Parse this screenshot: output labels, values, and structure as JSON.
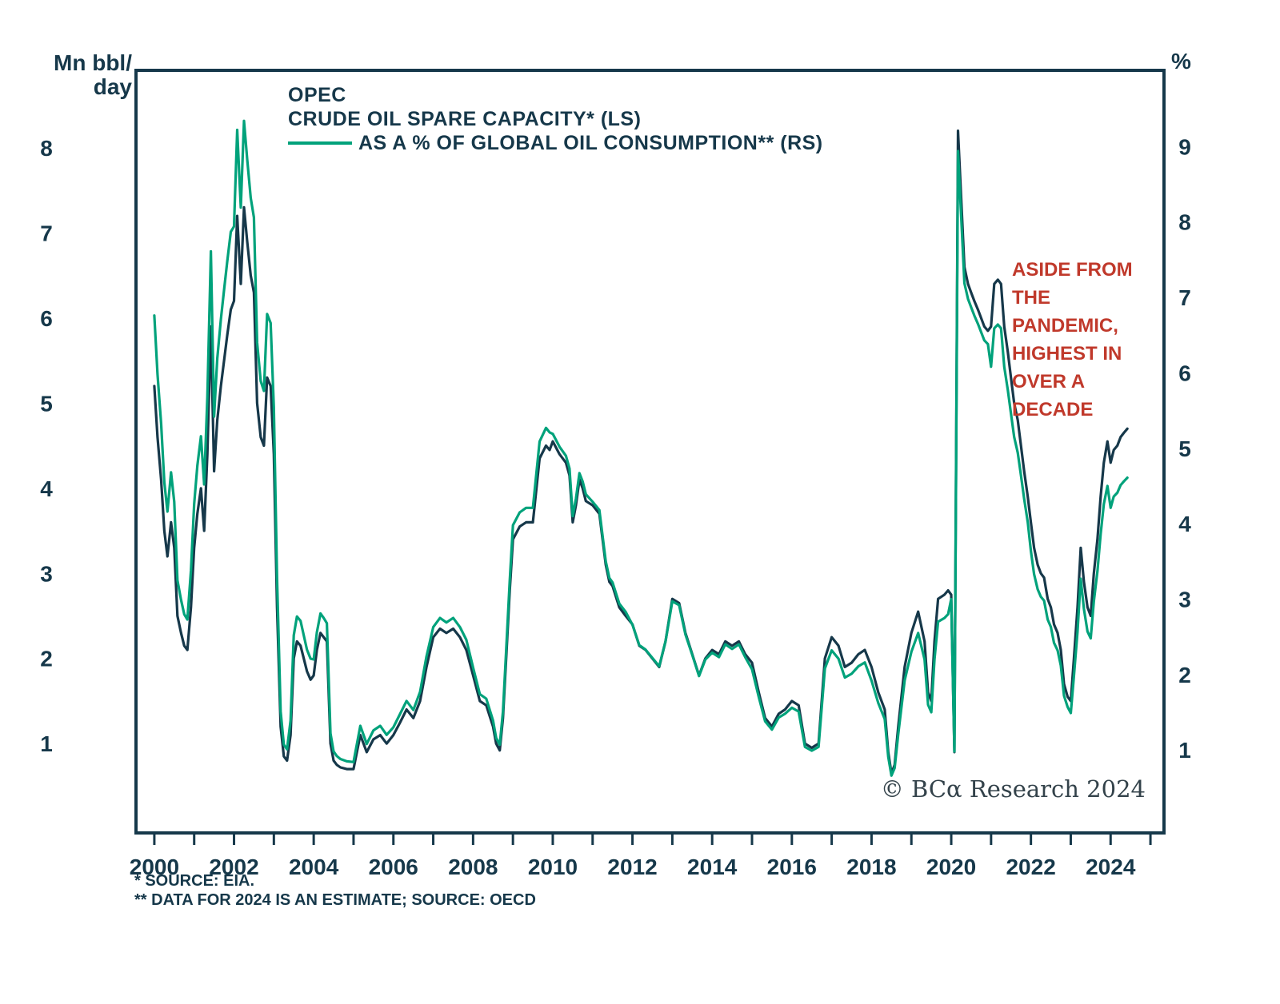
{
  "header": {
    "left_axis_unit_line1": "Mn bbl/",
    "left_axis_unit_line2": "day",
    "right_axis_unit": "%"
  },
  "title": {
    "line1": "OPEC",
    "line2": "CRUDE OIL SPARE CAPACITY* (LS)",
    "line3": "AS A % OF GLOBAL OIL CONSUMPTION** (RS)"
  },
  "annotation": {
    "lines": [
      "ASIDE FROM",
      "THE",
      "PANDEMIC,",
      "HIGHEST IN",
      "OVER A",
      "DECADE"
    ],
    "color": "#c0392b"
  },
  "footnotes": {
    "line1": "* SOURCE: EIA.",
    "line2": "** DATA FOR 2024 IS AN ESTIMATE; SOURCE: OECD"
  },
  "copyright": "© BCα Research 2024",
  "chart_data": {
    "type": "line",
    "title": "OPEC crude oil spare capacity (LS) / as a % of global oil consumption (RS)",
    "ylabel_left": "Mn bbl/day",
    "ylabel_right": "%",
    "grid": false,
    "legend_position": "top-left-inline-title",
    "axis_color": "#16384a",
    "xlim": [
      1999.54,
      2025.34
    ],
    "ylim_left": [
      -0.05,
      8.91
    ],
    "ylim_right": [
      -0.1,
      10.01
    ],
    "left_ticks": [
      1,
      2,
      3,
      4,
      5,
      6,
      7,
      8
    ],
    "right_ticks": [
      1,
      2,
      3,
      4,
      5,
      6,
      7,
      8,
      9
    ],
    "x_ticks_minor": [
      2000,
      2025
    ],
    "x_tick_labels": [
      "2000",
      "2002",
      "2004",
      "2006",
      "2008",
      "2010",
      "2012",
      "2014",
      "2016",
      "2018",
      "2020",
      "2022",
      "2024"
    ],
    "series": [
      {
        "name": "OPEC crude oil spare capacity (LS, Mn bbl/day)",
        "axis": "left",
        "color": "#16384a"
      },
      {
        "name": "Spare capacity as % of global oil consumption (RS, %)",
        "axis": "right",
        "color": "#00a27b"
      }
    ],
    "points": [
      [
        2000.0,
        5.2,
        6.76
      ],
      [
        2000.08,
        4.6,
        5.98
      ],
      [
        2000.17,
        4.1,
        5.33
      ],
      [
        2000.25,
        3.5,
        4.55
      ],
      [
        2000.33,
        3.2,
        4.16
      ],
      [
        2000.42,
        3.6,
        4.68
      ],
      [
        2000.5,
        3.3,
        4.29
      ],
      [
        2000.58,
        2.5,
        3.25
      ],
      [
        2000.67,
        2.3,
        2.99
      ],
      [
        2000.75,
        2.15,
        2.8
      ],
      [
        2000.83,
        2.1,
        2.73
      ],
      [
        2000.92,
        2.6,
        3.38
      ],
      [
        2001.0,
        3.3,
        4.26
      ],
      [
        2001.08,
        3.7,
        4.77
      ],
      [
        2001.17,
        4.0,
        5.16
      ],
      [
        2001.25,
        3.5,
        4.52
      ],
      [
        2001.33,
        4.4,
        5.68
      ],
      [
        2001.42,
        5.9,
        7.61
      ],
      [
        2001.5,
        4.2,
        5.42
      ],
      [
        2001.58,
        4.8,
        6.19
      ],
      [
        2001.67,
        5.2,
        6.71
      ],
      [
        2001.75,
        5.5,
        7.1
      ],
      [
        2001.83,
        5.8,
        7.48
      ],
      [
        2001.92,
        6.1,
        7.87
      ],
      [
        2002.0,
        6.2,
        7.94
      ],
      [
        2002.08,
        7.2,
        9.22
      ],
      [
        2002.17,
        6.4,
        8.19
      ],
      [
        2002.25,
        7.3,
        9.34
      ],
      [
        2002.33,
        6.9,
        8.83
      ],
      [
        2002.42,
        6.5,
        8.32
      ],
      [
        2002.5,
        6.3,
        8.06
      ],
      [
        2002.58,
        5.0,
        6.4
      ],
      [
        2002.67,
        4.6,
        5.89
      ],
      [
        2002.75,
        4.5,
        5.76
      ],
      [
        2002.83,
        5.3,
        6.78
      ],
      [
        2002.92,
        5.2,
        6.66
      ],
      [
        2003.0,
        4.4,
        5.54
      ],
      [
        2003.08,
        2.6,
        3.28
      ],
      [
        2003.17,
        1.2,
        1.51
      ],
      [
        2003.25,
        0.85,
        1.07
      ],
      [
        2003.33,
        0.8,
        1.01
      ],
      [
        2003.42,
        1.1,
        1.39
      ],
      [
        2003.5,
        2.0,
        2.52
      ],
      [
        2003.58,
        2.2,
        2.77
      ],
      [
        2003.67,
        2.15,
        2.71
      ],
      [
        2003.75,
        2.0,
        2.52
      ],
      [
        2003.83,
        1.85,
        2.33
      ],
      [
        2003.92,
        1.75,
        2.21
      ],
      [
        2004.0,
        1.8,
        2.2
      ],
      [
        2004.08,
        2.1,
        2.56
      ],
      [
        2004.17,
        2.3,
        2.81
      ],
      [
        2004.25,
        2.25,
        2.75
      ],
      [
        2004.33,
        2.2,
        2.68
      ],
      [
        2004.42,
        1.0,
        1.22
      ],
      [
        2004.5,
        0.8,
        0.98
      ],
      [
        2004.58,
        0.75,
        0.92
      ],
      [
        2004.67,
        0.72,
        0.88
      ],
      [
        2004.83,
        0.7,
        0.85
      ],
      [
        2005.0,
        0.7,
        0.84
      ],
      [
        2005.17,
        1.1,
        1.32
      ],
      [
        2005.25,
        1.0,
        1.2
      ],
      [
        2005.33,
        0.9,
        1.08
      ],
      [
        2005.5,
        1.05,
        1.26
      ],
      [
        2005.67,
        1.1,
        1.32
      ],
      [
        2005.83,
        1.0,
        1.2
      ],
      [
        2006.0,
        1.1,
        1.3
      ],
      [
        2006.17,
        1.25,
        1.48
      ],
      [
        2006.33,
        1.4,
        1.65
      ],
      [
        2006.5,
        1.3,
        1.53
      ],
      [
        2006.67,
        1.5,
        1.77
      ],
      [
        2006.83,
        1.9,
        2.24
      ],
      [
        2007.0,
        2.25,
        2.63
      ],
      [
        2007.17,
        2.35,
        2.75
      ],
      [
        2007.33,
        2.3,
        2.69
      ],
      [
        2007.5,
        2.35,
        2.75
      ],
      [
        2007.67,
        2.25,
        2.63
      ],
      [
        2007.83,
        2.1,
        2.46
      ],
      [
        2008.0,
        1.8,
        2.09
      ],
      [
        2008.17,
        1.5,
        1.74
      ],
      [
        2008.33,
        1.45,
        1.68
      ],
      [
        2008.5,
        1.2,
        1.39
      ],
      [
        2008.58,
        1.0,
        1.16
      ],
      [
        2008.67,
        0.92,
        1.07
      ],
      [
        2008.75,
        1.3,
        1.51
      ],
      [
        2008.83,
        2.0,
        2.32
      ],
      [
        2008.92,
        2.8,
        3.25
      ],
      [
        2009.0,
        3.4,
        3.98
      ],
      [
        2009.17,
        3.55,
        4.15
      ],
      [
        2009.33,
        3.6,
        4.21
      ],
      [
        2009.5,
        3.6,
        4.21
      ],
      [
        2009.67,
        4.35,
        5.09
      ],
      [
        2009.83,
        4.5,
        5.27
      ],
      [
        2009.92,
        4.45,
        5.21
      ],
      [
        2010.0,
        4.55,
        5.19
      ],
      [
        2010.17,
        4.4,
        5.02
      ],
      [
        2010.33,
        4.3,
        4.9
      ],
      [
        2010.42,
        4.15,
        4.73
      ],
      [
        2010.5,
        3.6,
        4.1
      ],
      [
        2010.58,
        3.8,
        4.33
      ],
      [
        2010.67,
        4.1,
        4.67
      ],
      [
        2010.75,
        4.0,
        4.56
      ],
      [
        2010.83,
        3.85,
        4.39
      ],
      [
        2011.0,
        3.8,
        4.29
      ],
      [
        2011.17,
        3.7,
        4.18
      ],
      [
        2011.33,
        3.1,
        3.5
      ],
      [
        2011.42,
        2.9,
        3.28
      ],
      [
        2011.5,
        2.85,
        3.22
      ],
      [
        2011.67,
        2.6,
        2.94
      ],
      [
        2011.83,
        2.5,
        2.83
      ],
      [
        2012.0,
        2.4,
        2.66
      ],
      [
        2012.17,
        2.15,
        2.39
      ],
      [
        2012.33,
        2.1,
        2.33
      ],
      [
        2012.5,
        2.0,
        2.22
      ],
      [
        2012.67,
        1.9,
        2.11
      ],
      [
        2012.83,
        2.2,
        2.44
      ],
      [
        2013.0,
        2.7,
        2.97
      ],
      [
        2013.17,
        2.65,
        2.92
      ],
      [
        2013.33,
        2.3,
        2.53
      ],
      [
        2013.5,
        2.05,
        2.26
      ],
      [
        2013.67,
        1.8,
        1.98
      ],
      [
        2013.83,
        2.0,
        2.2
      ],
      [
        2014.0,
        2.1,
        2.29
      ],
      [
        2014.17,
        2.05,
        2.23
      ],
      [
        2014.33,
        2.2,
        2.4
      ],
      [
        2014.5,
        2.15,
        2.34
      ],
      [
        2014.67,
        2.2,
        2.4
      ],
      [
        2014.83,
        2.05,
        2.23
      ],
      [
        2015.0,
        1.95,
        2.07
      ],
      [
        2015.17,
        1.6,
        1.7
      ],
      [
        2015.33,
        1.3,
        1.38
      ],
      [
        2015.5,
        1.2,
        1.27
      ],
      [
        2015.67,
        1.35,
        1.43
      ],
      [
        2015.83,
        1.4,
        1.48
      ],
      [
        2016.0,
        1.5,
        1.56
      ],
      [
        2016.17,
        1.45,
        1.51
      ],
      [
        2016.33,
        1.0,
        1.04
      ],
      [
        2016.5,
        0.95,
        0.99
      ],
      [
        2016.67,
        1.0,
        1.04
      ],
      [
        2016.83,
        2.0,
        2.08
      ],
      [
        2017.0,
        2.25,
        2.32
      ],
      [
        2017.17,
        2.15,
        2.21
      ],
      [
        2017.33,
        1.9,
        1.96
      ],
      [
        2017.5,
        1.95,
        2.01
      ],
      [
        2017.67,
        2.05,
        2.11
      ],
      [
        2017.83,
        2.1,
        2.16
      ],
      [
        2018.0,
        1.9,
        1.92
      ],
      [
        2018.17,
        1.6,
        1.62
      ],
      [
        2018.33,
        1.4,
        1.41
      ],
      [
        2018.42,
        0.9,
        0.91
      ],
      [
        2018.5,
        0.65,
        0.66
      ],
      [
        2018.58,
        0.75,
        0.76
      ],
      [
        2018.67,
        1.2,
        1.21
      ],
      [
        2018.83,
        1.9,
        1.92
      ],
      [
        2019.0,
        2.3,
        2.3
      ],
      [
        2019.17,
        2.55,
        2.55
      ],
      [
        2019.33,
        2.2,
        2.2
      ],
      [
        2019.42,
        1.6,
        1.6
      ],
      [
        2019.5,
        1.5,
        1.5
      ],
      [
        2019.58,
        2.2,
        2.2
      ],
      [
        2019.67,
        2.7,
        2.7
      ],
      [
        2019.83,
        2.75,
        2.75
      ],
      [
        2019.92,
        2.8,
        2.8
      ],
      [
        2020.0,
        2.75,
        3.0
      ],
      [
        2020.08,
        0.9,
        0.98
      ],
      [
        2020.17,
        8.2,
        8.94
      ],
      [
        2020.25,
        7.4,
        8.07
      ],
      [
        2020.33,
        6.6,
        7.19
      ],
      [
        2020.42,
        6.4,
        6.98
      ],
      [
        2020.5,
        6.3,
        6.87
      ],
      [
        2020.58,
        6.2,
        6.76
      ],
      [
        2020.67,
        6.1,
        6.65
      ],
      [
        2020.75,
        6.0,
        6.54
      ],
      [
        2020.83,
        5.9,
        6.43
      ],
      [
        2020.92,
        5.85,
        6.38
      ],
      [
        2021.0,
        5.9,
        6.08
      ],
      [
        2021.08,
        6.4,
        6.59
      ],
      [
        2021.17,
        6.45,
        6.64
      ],
      [
        2021.25,
        6.4,
        6.59
      ],
      [
        2021.33,
        5.9,
        6.08
      ],
      [
        2021.42,
        5.6,
        5.77
      ],
      [
        2021.5,
        5.3,
        5.46
      ],
      [
        2021.58,
        5.0,
        5.15
      ],
      [
        2021.67,
        4.8,
        4.94
      ],
      [
        2021.75,
        4.5,
        4.64
      ],
      [
        2021.83,
        4.2,
        4.33
      ],
      [
        2021.92,
        3.9,
        4.02
      ],
      [
        2022.0,
        3.6,
        3.64
      ],
      [
        2022.08,
        3.3,
        3.33
      ],
      [
        2022.17,
        3.1,
        3.13
      ],
      [
        2022.25,
        3.0,
        3.03
      ],
      [
        2022.33,
        2.95,
        2.98
      ],
      [
        2022.42,
        2.7,
        2.73
      ],
      [
        2022.5,
        2.6,
        2.63
      ],
      [
        2022.58,
        2.4,
        2.42
      ],
      [
        2022.67,
        2.3,
        2.32
      ],
      [
        2022.75,
        2.1,
        2.12
      ],
      [
        2022.83,
        1.7,
        1.72
      ],
      [
        2022.92,
        1.55,
        1.57
      ],
      [
        2023.0,
        1.5,
        1.49
      ],
      [
        2023.08,
        2.0,
        1.98
      ],
      [
        2023.17,
        2.6,
        2.57
      ],
      [
        2023.25,
        3.3,
        3.27
      ],
      [
        2023.33,
        2.9,
        2.87
      ],
      [
        2023.42,
        2.6,
        2.57
      ],
      [
        2023.5,
        2.5,
        2.48
      ],
      [
        2023.58,
        3.0,
        2.97
      ],
      [
        2023.67,
        3.4,
        3.37
      ],
      [
        2023.75,
        3.9,
        3.86
      ],
      [
        2023.83,
        4.3,
        4.26
      ],
      [
        2023.92,
        4.55,
        4.5
      ],
      [
        2024.0,
        4.3,
        4.21
      ],
      [
        2024.08,
        4.45,
        4.36
      ],
      [
        2024.17,
        4.5,
        4.41
      ],
      [
        2024.25,
        4.6,
        4.51
      ],
      [
        2024.33,
        4.65,
        4.56
      ],
      [
        2024.42,
        4.7,
        4.61
      ]
    ]
  }
}
